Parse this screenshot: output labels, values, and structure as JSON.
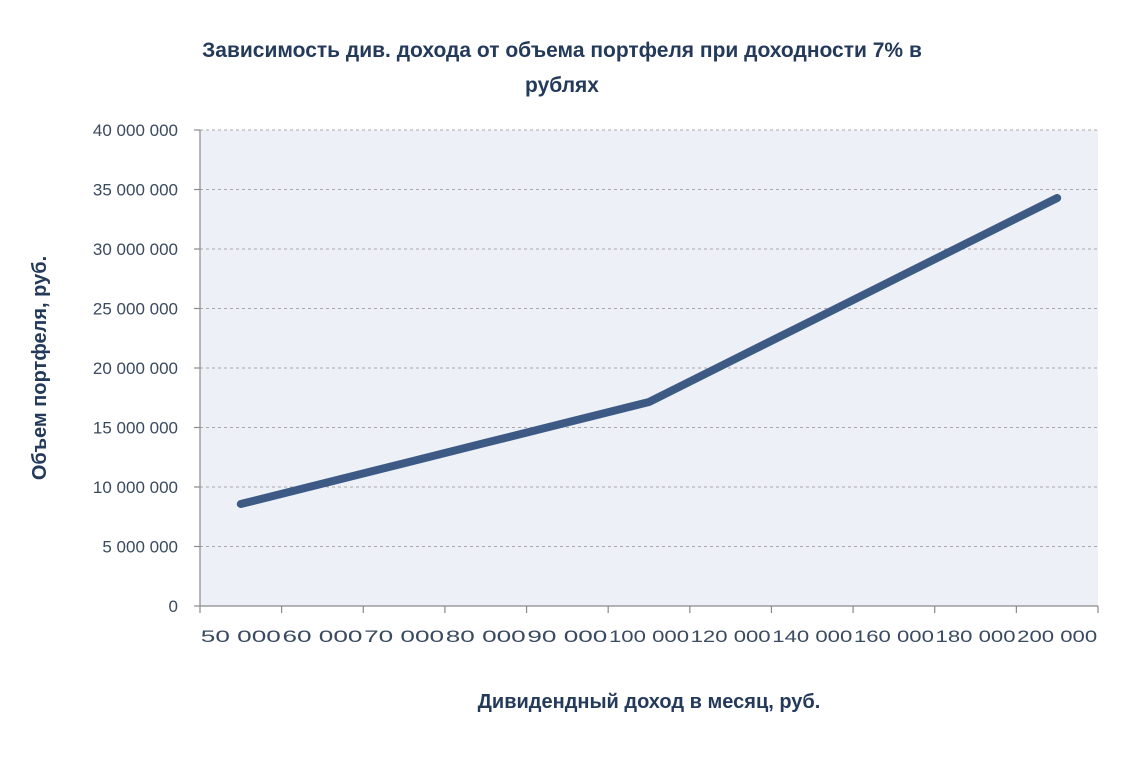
{
  "chart_data": {
    "type": "line",
    "title_lines": [
      "Зависимость див. дохода от объема портфеля при доходности 7% в",
      "рублях"
    ],
    "xlabel": "Дивидендный доход в месяц, руб.",
    "ylabel": "Объем портфеля, руб.",
    "categories": [
      "50 000",
      "60 000",
      "70 000",
      "80 000",
      "90 000",
      "100 000",
      "120 000",
      "140 000",
      "160 000",
      "180 000",
      "200 000"
    ],
    "y_tick_labels": [
      "0",
      "5 000 000",
      "10 000 000",
      "15 000 000",
      "20 000 000",
      "25 000 000",
      "30 000 000",
      "35 000 000",
      "40 000 000"
    ],
    "ylim": [
      0,
      40000000
    ],
    "series": [
      {
        "values": [
          8571429,
          10285714,
          12000000,
          13714286,
          15428571,
          17142857,
          20571429,
          24000000,
          27428571,
          30857143,
          34285714
        ]
      }
    ],
    "grid": "horizontal dashed",
    "line_color": "#3d5a85",
    "plot_background": "#eef0f7"
  }
}
